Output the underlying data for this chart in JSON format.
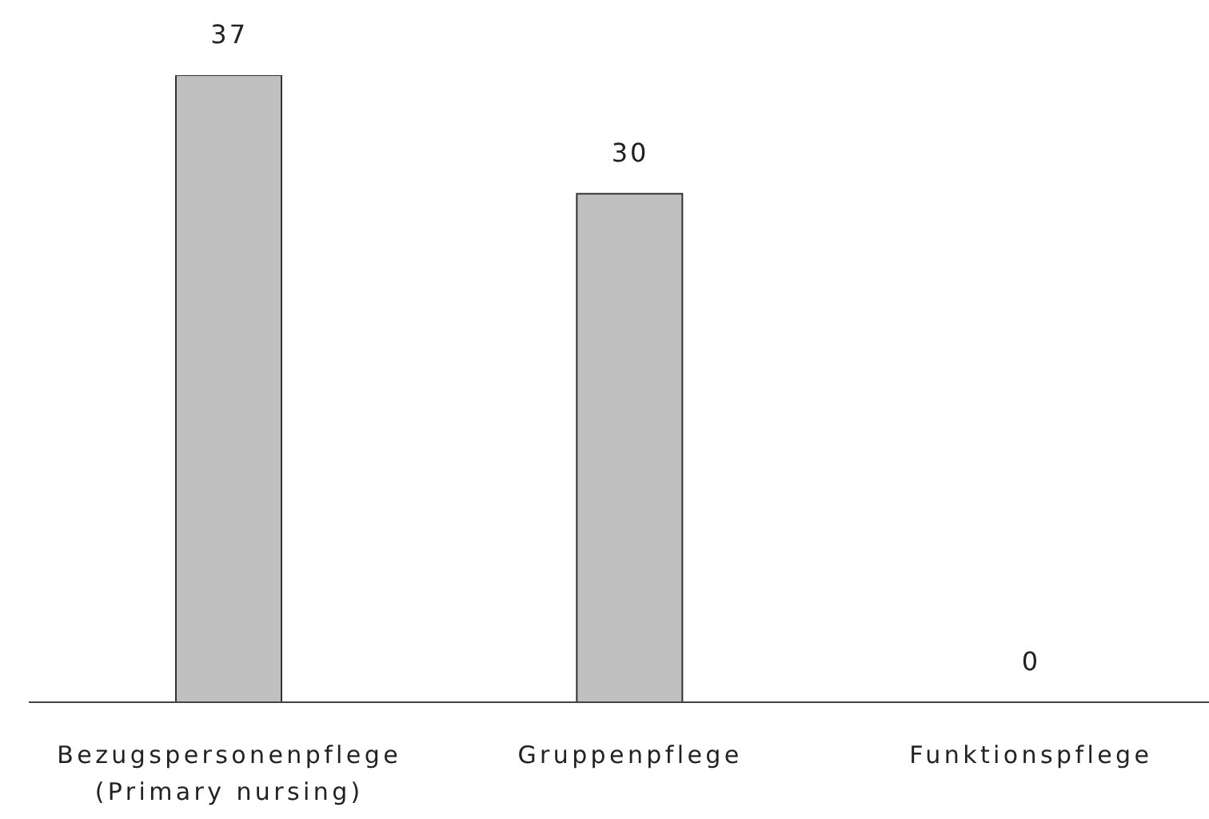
{
  "chart_data": {
    "type": "bar",
    "categories": [
      "Bezugspersonenpflege\n(Primary nursing)",
      "Gruppenpflege",
      "Funktionspflege"
    ],
    "values": [
      37,
      30,
      0
    ],
    "color": "#c0c0c0",
    "data_labels": true
  }
}
